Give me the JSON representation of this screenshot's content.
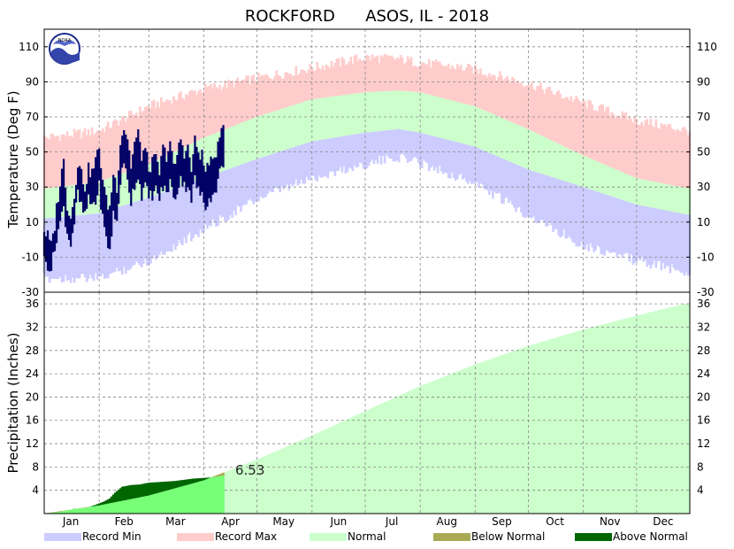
{
  "chart_data": {
    "type": "area",
    "title": "ROCKFORD      ASOS, IL - 2018",
    "year": 2018,
    "months": [
      "Jan",
      "Feb",
      "Mar",
      "Apr",
      "May",
      "Jun",
      "Jul",
      "Aug",
      "Sep",
      "Oct",
      "Nov",
      "Dec"
    ],
    "temperature": {
      "ylabel": "Temperature (Deg F)",
      "ylim": [
        -30,
        120
      ],
      "yticks": [
        -30,
        -10,
        10,
        30,
        50,
        70,
        90,
        110
      ],
      "normal_high": {
        "day_of_year": [
          1,
          32,
          60,
          91,
          121,
          152,
          182,
          201,
          213,
          244,
          274,
          305,
          335,
          365
        ],
        "values": [
          29,
          33,
          43,
          58,
          70,
          80,
          84,
          85,
          84,
          76,
          63,
          48,
          35,
          29
        ]
      },
      "normal_low": {
        "day_of_year": [
          1,
          32,
          60,
          91,
          121,
          152,
          182,
          201,
          213,
          244,
          274,
          305,
          335,
          365
        ],
        "values": [
          12,
          15,
          24,
          35,
          46,
          56,
          61,
          63,
          61,
          53,
          40,
          30,
          20,
          14
        ]
      },
      "record_max": {
        "day_of_year": [
          1,
          32,
          60,
          91,
          121,
          152,
          182,
          201,
          213,
          244,
          274,
          305,
          335,
          365
        ],
        "values": [
          58,
          62,
          76,
          86,
          92,
          98,
          104,
          103,
          101,
          97,
          89,
          78,
          68,
          62
        ]
      },
      "record_min": {
        "day_of_year": [
          1,
          32,
          60,
          91,
          121,
          152,
          182,
          201,
          213,
          244,
          274,
          305,
          335,
          365
        ],
        "values": [
          -22,
          -22,
          -12,
          6,
          23,
          35,
          43,
          47,
          44,
          32,
          14,
          -3,
          -12,
          -19
        ]
      },
      "observed": {
        "day_of_year": [
          1,
          3,
          5,
          7,
          8,
          10,
          12,
          14,
          16,
          18,
          20,
          22,
          24,
          26,
          28,
          30,
          32,
          34,
          36,
          38,
          40,
          42,
          44,
          46,
          48,
          50,
          52,
          54,
          56,
          58,
          60,
          62,
          64,
          66,
          68,
          70,
          72,
          74,
          76,
          78,
          80,
          82,
          84,
          86,
          88,
          90,
          92,
          94,
          96,
          98,
          100,
          102
        ],
        "high": [
          5,
          2,
          -4,
          8,
          18,
          32,
          45,
          20,
          12,
          26,
          44,
          38,
          30,
          40,
          38,
          45,
          52,
          35,
          22,
          18,
          38,
          30,
          56,
          64,
          58,
          42,
          55,
          60,
          48,
          52,
          40,
          44,
          46,
          38,
          52,
          48,
          56,
          40,
          48,
          58,
          50,
          52,
          40,
          56,
          50,
          48,
          38,
          46,
          42,
          50,
          62,
          68
        ],
        "low": [
          -12,
          -14,
          -16,
          -6,
          2,
          10,
          18,
          4,
          -2,
          10,
          26,
          18,
          14,
          22,
          20,
          22,
          30,
          12,
          0,
          -6,
          14,
          10,
          34,
          42,
          36,
          22,
          32,
          36,
          26,
          30,
          24,
          26,
          28,
          24,
          30,
          26,
          34,
          22,
          28,
          36,
          30,
          32,
          24,
          34,
          28,
          24,
          18,
          26,
          24,
          30,
          38,
          44
        ]
      }
    },
    "precipitation": {
      "ylabel": "Precipitation (Inches)",
      "ylim": [
        0,
        38
      ],
      "yticks": [
        4,
        8,
        12,
        16,
        20,
        24,
        28,
        32,
        36
      ],
      "normal_cumulative": {
        "day_of_year": [
          1,
          32,
          60,
          91,
          121,
          152,
          182,
          213,
          244,
          274,
          305,
          335,
          365
        ],
        "values": [
          0,
          1.4,
          3.1,
          5.7,
          9.3,
          13.4,
          17.6,
          21.9,
          25.6,
          28.8,
          31.6,
          34.0,
          36.2
        ]
      },
      "observed_cumulative": {
        "day_of_year": [
          1,
          10,
          18,
          25,
          30,
          35,
          38,
          41,
          45,
          50,
          55,
          60,
          65,
          70,
          75,
          80,
          85,
          90,
          95,
          100,
          102
        ],
        "values": [
          0,
          0.3,
          0.8,
          1.0,
          1.5,
          2.1,
          2.6,
          3.6,
          4.6,
          4.9,
          5.0,
          5.3,
          5.4,
          5.5,
          5.6,
          5.8,
          6.0,
          6.1,
          6.2,
          6.4,
          6.53
        ]
      },
      "latest_total_label": "6.53"
    },
    "legend": [
      {
        "label": "Record Min",
        "color": "#ccccff"
      },
      {
        "label": "Record Max",
        "color": "#ffcccc"
      },
      {
        "label": "Normal",
        "color": "#ccffcc"
      },
      {
        "label": "Below Normal",
        "color": "#aaaa55"
      },
      {
        "label": "Above Normal",
        "color": "#006600"
      }
    ],
    "colors": {
      "observed_temp": "#000066",
      "record_max": "#ffcccc",
      "record_min": "#ccccff",
      "normal": "#ccffcc",
      "precip_observed_fill": "#77ff77",
      "above_normal": "#006600",
      "below_normal": "#aaaa55"
    },
    "grid": true,
    "legend_position": "bottom"
  },
  "logo": {
    "name": "noaa-logo",
    "text": "NOAA"
  }
}
